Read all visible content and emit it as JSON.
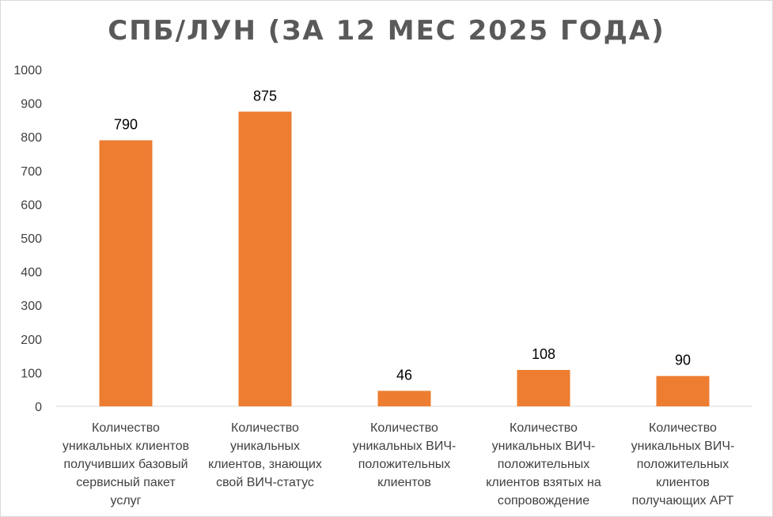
{
  "chart_data": {
    "type": "bar",
    "title": "СПБ/ЛУН (ЗА 12 МЕС 2025 ГОДА)",
    "xlabel": "",
    "ylabel": "",
    "ylim": [
      0,
      1000
    ],
    "yticks": [
      0,
      100,
      200,
      300,
      400,
      500,
      600,
      700,
      800,
      900,
      1000
    ],
    "grid": false,
    "bar_color": "#ED7D31",
    "categories": [
      [
        "Количество",
        "уникальных клиентов",
        "получивших базовый",
        "сервисный пакет",
        "услуг"
      ],
      [
        "Количество",
        "уникальных",
        "клиентов, знающих",
        "свой ВИЧ-статус"
      ],
      [
        "Количество",
        "уникальных ВИЧ-",
        "положительных",
        "клиентов"
      ],
      [
        "Количество",
        "уникальных ВИЧ-",
        "положительных",
        "клиентов взятых на",
        "сопровождение"
      ],
      [
        "Количество",
        "уникальных ВИЧ-",
        "положительных",
        "клиентов",
        "получающих АРТ"
      ]
    ],
    "values": [
      790,
      875,
      46,
      108,
      90
    ]
  }
}
